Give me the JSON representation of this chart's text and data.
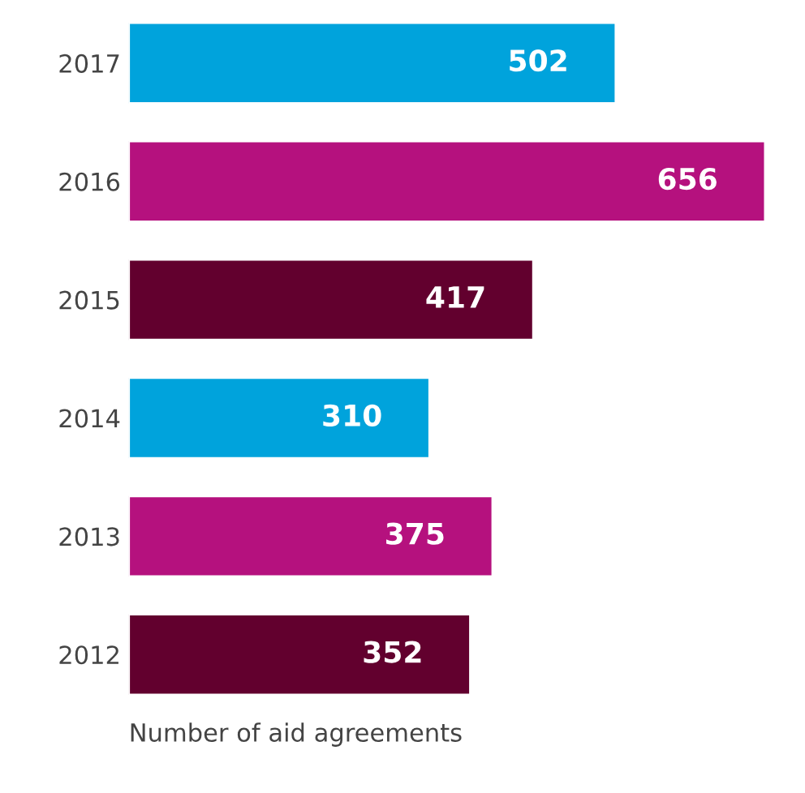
{
  "chart_data": {
    "type": "bar",
    "orientation": "horizontal",
    "xlabel": "Number of aid agreements",
    "categories": [
      "2017",
      "2016",
      "2015",
      "2014",
      "2013",
      "2012"
    ],
    "values": [
      502,
      656,
      417,
      310,
      375,
      352
    ],
    "colors": [
      "#00a3dc",
      "#b5117e",
      "#62002e",
      "#00a3dc",
      "#b5117e",
      "#62002e"
    ],
    "data_labels": true,
    "tick_labels": "y",
    "grid": false
  }
}
